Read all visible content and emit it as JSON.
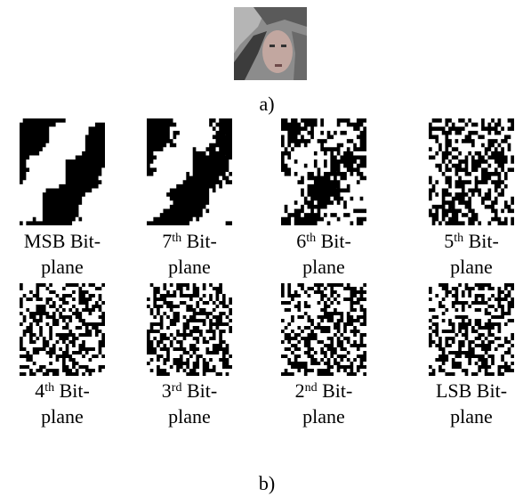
{
  "figure": {
    "part_a": {
      "caption": "a)"
    },
    "part_b": {
      "caption": "b)",
      "panels": [
        {
          "label": {
            "lead": "MSB Bit-",
            "tail": "plane"
          }
        },
        {
          "label": {
            "number": "7",
            "suffix": "th",
            "lead": " Bit-",
            "tail": "plane"
          }
        },
        {
          "label": {
            "number": "6",
            "suffix": "th",
            "lead": " Bit-",
            "tail": "plane"
          }
        },
        {
          "label": {
            "number": "5",
            "suffix": "th",
            "lead": " Bit-",
            "tail": "plane"
          }
        },
        {
          "label": {
            "number": "4",
            "suffix": "th",
            "lead": " Bit-",
            "tail": "plane"
          }
        },
        {
          "label": {
            "number": "3",
            "suffix": "rd",
            "lead": " Bit-",
            "tail": "plane"
          }
        },
        {
          "label": {
            "number": "2",
            "suffix": "nd",
            "lead": " Bit-",
            "tail": "plane"
          }
        },
        {
          "label": {
            "lead": "LSB  Bit-",
            "tail": "plane"
          }
        }
      ]
    }
  }
}
